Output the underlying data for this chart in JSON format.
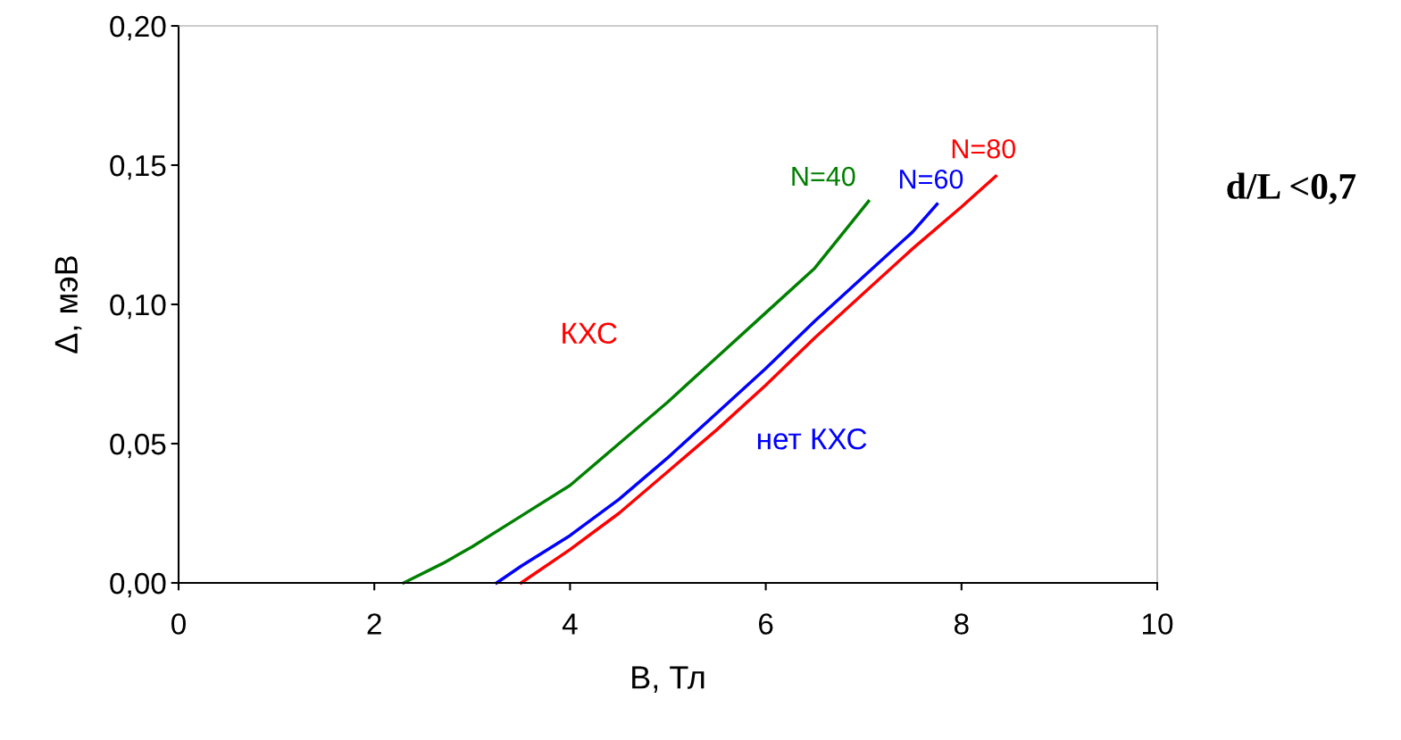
{
  "chart_data": {
    "type": "line",
    "xlabel": "B, Тл",
    "ylabel": "Δ, мэВ",
    "xlim": [
      0,
      10
    ],
    "xticks": [
      0,
      2,
      4,
      6,
      8,
      10
    ],
    "ylim": [
      0,
      0.2
    ],
    "yticks": [
      {
        "value": 0,
        "label": "0,00"
      },
      {
        "value": 0.05,
        "label": "0,05"
      },
      {
        "value": 0.1,
        "label": "0,10"
      },
      {
        "value": 0.15,
        "label": "0,15"
      },
      {
        "value": 0.2,
        "label": "0,20"
      }
    ],
    "grid": false,
    "legend": false,
    "marker": "none",
    "line_style": "solid",
    "series": [
      {
        "name": "N=40",
        "color": "#008000",
        "x": [
          2.3,
          2.7,
          3.0,
          3.5,
          4.0,
          4.5,
          5.0,
          5.5,
          6.0,
          6.5,
          7.05
        ],
        "values": [
          0,
          0.007,
          0.013,
          0.024,
          0.035,
          0.05,
          0.065,
          0.081,
          0.097,
          0.113,
          0.137
        ]
      },
      {
        "name": "N=60",
        "color": "#0000ff",
        "x": [
          3.25,
          3.5,
          4.0,
          4.5,
          5.0,
          5.5,
          6.0,
          6.5,
          7.0,
          7.5,
          7.75
        ],
        "values": [
          0,
          0.006,
          0.017,
          0.03,
          0.045,
          0.061,
          0.077,
          0.094,
          0.11,
          0.126,
          0.136
        ]
      },
      {
        "name": "N=80",
        "color": "#ff0000",
        "x": [
          3.5,
          4.0,
          4.5,
          5.0,
          5.5,
          6.0,
          6.5,
          7.0,
          7.5,
          8.0,
          8.35
        ],
        "values": [
          0,
          0.012,
          0.025,
          0.04,
          0.055,
          0.071,
          0.088,
          0.104,
          0.12,
          0.135,
          0.146
        ]
      }
    ],
    "annotations": [
      "КХС",
      "нет КХС",
      "d/L <0,7"
    ]
  }
}
